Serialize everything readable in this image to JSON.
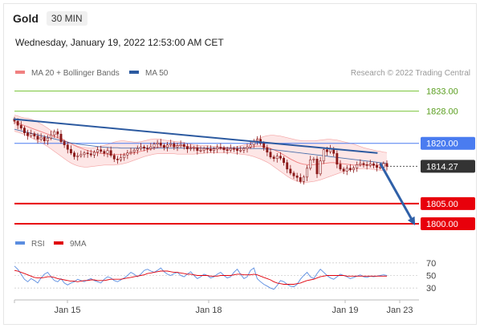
{
  "header": {
    "title": "Gold",
    "timeframe": "30 MIN",
    "datetime": "Wednesday, January 19, 2022 12:53:00 AM CET"
  },
  "colors": {
    "bollinger": "#f08080",
    "bollinger_fill": "#fde6e6",
    "ma50": "#2c5aa0",
    "resistance": "#7cc63d",
    "pivot": "#4a7cf0",
    "support": "#e8000b",
    "price_tag": "#333333",
    "candle": "#8b1a1a",
    "rsi": "#5b8de0",
    "rsi_ma": "#e0000b",
    "arrow": "#2f60a8"
  },
  "chart_data": [
    {
      "type": "line",
      "name": "price",
      "legend": [
        {
          "name": "MA 20 + Bollinger Bands",
          "color": "#f08080"
        },
        {
          "name": "MA 50",
          "color": "#2c5aa0"
        }
      ],
      "credit": "Research © 2022 Trading Central",
      "x_tick_labels": [
        "Jan 15",
        "Jan 18",
        "Jan 19",
        "Jan 23"
      ],
      "levels": [
        {
          "label": "1833.00",
          "value": 1833.0,
          "role": "resistance"
        },
        {
          "label": "1828.00",
          "value": 1828.0,
          "role": "resistance"
        },
        {
          "label": "1820.00",
          "value": 1820.0,
          "role": "pivot"
        },
        {
          "label": "1814.27",
          "value": 1814.27,
          "role": "last_price"
        },
        {
          "label": "1805.00",
          "value": 1805.0,
          "role": "support"
        },
        {
          "label": "1800.00",
          "value": 1800.0,
          "role": "support"
        }
      ],
      "ylim": [
        1799,
        1834.5
      ],
      "close": [
        1825.5,
        1824.5,
        1823.8,
        1822.6,
        1821.9,
        1822.4,
        1821.8,
        1821.0,
        1821.5,
        1820.6,
        1821.3,
        1822.1,
        1822.9,
        1822.3,
        1820.4,
        1819.6,
        1818.5,
        1817.6,
        1816.7,
        1816.9,
        1817.2,
        1817.6,
        1817.4,
        1817.1,
        1817.8,
        1818.4,
        1818.0,
        1817.5,
        1818.2,
        1817.0,
        1816.1,
        1815.9,
        1816.4,
        1817.1,
        1817.6,
        1817.9,
        1818.3,
        1818.7,
        1819.1,
        1818.8,
        1818.7,
        1819.1,
        1819.8,
        1820.1,
        1819.5,
        1819.0,
        1819.6,
        1819.9,
        1819.1,
        1819.4,
        1819.7,
        1819.2,
        1818.6,
        1818.8,
        1818.9,
        1818.2,
        1818.3,
        1818.7,
        1818.5,
        1818.2,
        1818.6,
        1819.0,
        1818.9,
        1818.4,
        1818.3,
        1818.7,
        1818.6,
        1818.2,
        1818.3,
        1818.7,
        1819.1,
        1819.6,
        1820.6,
        1821.0,
        1820.0,
        1818.9,
        1817.8,
        1816.6,
        1816.2,
        1816.8,
        1816.3,
        1815.2,
        1813.6,
        1812.6,
        1811.9,
        1811.5,
        1810.5,
        1811.6,
        1813.8,
        1815.9,
        1816.1,
        1812.4,
        1815.6,
        1818.4,
        1817.9,
        1818.6,
        1817.5,
        1814.8,
        1813.6,
        1813.1,
        1813.8,
        1813.4,
        1813.9,
        1814.7,
        1815.0,
        1814.7,
        1814.5,
        1814.9,
        1814.5,
        1814.0,
        1814.1,
        1815.0,
        1814.27
      ],
      "ma20_upper": [
        1827.0,
        1826.8,
        1826.5,
        1826.3,
        1826.2,
        1826.0,
        1825.7,
        1825.3,
        1824.8,
        1824.3,
        1823.8,
        1823.2,
        1822.6,
        1822.0,
        1821.4,
        1820.8,
        1820.3,
        1819.9,
        1819.6,
        1819.3,
        1819.1,
        1819.0,
        1818.9,
        1818.8,
        1818.9,
        1819.1,
        1819.3,
        1819.5,
        1819.7,
        1820.0,
        1820.3,
        1820.5,
        1820.6,
        1820.6,
        1820.5,
        1820.4,
        1820.3,
        1820.3,
        1820.4,
        1820.6,
        1820.8,
        1821.0,
        1821.1,
        1821.1,
        1821.0,
        1820.8,
        1820.7,
        1820.6,
        1820.5,
        1820.4,
        1820.3,
        1820.2,
        1820.0,
        1819.8,
        1819.6,
        1819.5,
        1819.4,
        1819.4,
        1819.4,
        1819.3,
        1819.2,
        1819.2,
        1819.1,
        1819.0,
        1819.0,
        1819.0,
        1819.1,
        1819.2,
        1819.4,
        1819.6,
        1819.8,
        1820.1,
        1820.5,
        1821.0,
        1821.4,
        1821.7,
        1821.9,
        1822.0,
        1822.0,
        1821.9,
        1821.8,
        1821.6,
        1821.4,
        1821.2,
        1821.0,
        1820.8,
        1820.7,
        1820.6,
        1820.6,
        1820.6,
        1820.6,
        1820.7,
        1820.8,
        1820.9,
        1821.0,
        1821.0,
        1820.9,
        1820.8,
        1820.6,
        1820.4,
        1820.2,
        1820.0,
        1819.8,
        1819.5,
        1819.2,
        1818.9,
        1818.7,
        1818.5,
        1818.3,
        1818.1,
        1818.0,
        1817.8,
        1817.7
      ],
      "ma20_mid": [
        1825.2,
        1825.0,
        1824.7,
        1824.4,
        1824.1,
        1823.8,
        1823.5,
        1823.2,
        1822.9,
        1822.6,
        1822.3,
        1822.0,
        1821.7,
        1821.4,
        1821.1,
        1820.7,
        1820.3,
        1819.9,
        1819.5,
        1819.1,
        1818.8,
        1818.5,
        1818.2,
        1818.0,
        1817.8,
        1817.6,
        1817.5,
        1817.4,
        1817.3,
        1817.2,
        1817.2,
        1817.2,
        1817.2,
        1817.3,
        1817.4,
        1817.5,
        1817.6,
        1817.8,
        1818.0,
        1818.2,
        1818.4,
        1818.6,
        1818.8,
        1819.0,
        1819.1,
        1819.2,
        1819.3,
        1819.3,
        1819.4,
        1819.4,
        1819.4,
        1819.3,
        1819.2,
        1819.1,
        1819.0,
        1818.9,
        1818.8,
        1818.7,
        1818.7,
        1818.6,
        1818.6,
        1818.6,
        1818.6,
        1818.6,
        1818.6,
        1818.6,
        1818.6,
        1818.6,
        1818.7,
        1818.8,
        1818.9,
        1819.0,
        1819.2,
        1819.3,
        1819.3,
        1819.2,
        1819.0,
        1818.7,
        1818.4,
        1818.0,
        1817.6,
        1817.1,
        1816.6,
        1816.1,
        1815.7,
        1815.3,
        1815.0,
        1814.8,
        1814.7,
        1814.7,
        1814.7,
        1814.8,
        1814.9,
        1815.0,
        1815.1,
        1815.2,
        1815.2,
        1815.1,
        1815.0,
        1814.9,
        1814.8,
        1814.7,
        1814.6,
        1814.6,
        1814.6,
        1814.6,
        1814.6,
        1814.6,
        1814.6,
        1814.6,
        1814.6,
        1814.6,
        1814.6
      ],
      "ma20_lower": [
        1823.0,
        1822.8,
        1822.5,
        1822.2,
        1821.8,
        1821.4,
        1821.0,
        1820.6,
        1820.2,
        1819.7,
        1819.2,
        1818.6,
        1818.0,
        1817.4,
        1816.8,
        1816.2,
        1815.6,
        1815.1,
        1814.7,
        1814.4,
        1814.2,
        1814.1,
        1814.1,
        1814.2,
        1814.3,
        1814.4,
        1814.5,
        1814.6,
        1814.6,
        1814.6,
        1814.6,
        1814.7,
        1814.8,
        1815.0,
        1815.2,
        1815.5,
        1815.8,
        1816.1,
        1816.4,
        1816.7,
        1816.9,
        1817.1,
        1817.3,
        1817.4,
        1817.4,
        1817.4,
        1817.4,
        1817.4,
        1817.4,
        1817.3,
        1817.3,
        1817.3,
        1817.3,
        1817.3,
        1817.3,
        1817.4,
        1817.4,
        1817.5,
        1817.6,
        1817.6,
        1817.6,
        1817.6,
        1817.6,
        1817.6,
        1817.6,
        1817.6,
        1817.5,
        1817.4,
        1817.3,
        1817.2,
        1817.1,
        1816.9,
        1816.7,
        1816.4,
        1816.1,
        1815.7,
        1815.3,
        1814.8,
        1814.2,
        1813.6,
        1813.0,
        1812.4,
        1811.8,
        1811.3,
        1810.9,
        1810.6,
        1810.4,
        1810.3,
        1810.3,
        1810.4,
        1810.5,
        1810.7,
        1810.9,
        1811.2,
        1811.5,
        1811.8,
        1812.1,
        1812.4,
        1812.7,
        1813.0,
        1813.2,
        1813.4,
        1813.5,
        1813.6,
        1813.7,
        1813.7,
        1813.7,
        1813.6,
        1813.5,
        1813.4,
        1813.3,
        1813.2,
        1813.1
      ],
      "ma50": [
        1823.5,
        1823.3,
        1823.1,
        1822.9,
        1822.7,
        1822.5,
        1822.3,
        1822.1,
        1821.9,
        1821.7,
        1821.5,
        1821.3,
        1821.1,
        1820.9,
        1820.7,
        1820.5,
        1820.3,
        1820.1,
        1820.0,
        1819.8,
        1819.7,
        1819.6,
        1819.5,
        1819.4,
        1819.3,
        1819.2,
        1819.1,
        1819.0,
        1819.0,
        1818.9,
        1818.9,
        1818.9,
        1818.8,
        1818.8,
        1818.8,
        1818.8,
        1818.8,
        1818.8,
        1818.8,
        1818.8,
        1818.8,
        1818.8,
        1818.8,
        1818.8,
        1818.8,
        1818.8,
        1818.8,
        1818.8,
        1818.8,
        1818.8,
        1818.8,
        1818.8,
        1818.8,
        1818.8,
        1818.8,
        1818.8,
        1818.8,
        1818.8,
        1818.8,
        1818.8,
        1818.8,
        1818.8,
        1818.8,
        1818.8,
        1818.8,
        1818.8,
        1818.8,
        1818.8,
        1818.8,
        1818.8,
        1818.8,
        1818.7,
        1818.7,
        1818.7,
        1818.7,
        1818.6,
        1818.6,
        1818.5,
        1818.4,
        1818.3,
        1818.2,
        1818.1,
        1818.0,
        1817.9,
        1817.8,
        1817.7,
        1817.6,
        1817.5,
        1817.4,
        1817.3,
        1817.2,
        1817.1,
        1817.0,
        1816.9,
        1816.8,
        1816.7,
        1816.6,
        1816.5,
        1816.4,
        1816.3,
        1816.2,
        1816.1,
        1816.0,
        1815.9,
        1815.8,
        1815.7,
        1815.6,
        1815.5,
        1815.4,
        1815.3,
        1815.2,
        1815.1,
        1815.0
      ],
      "trendline": {
        "from": [
          0,
          1826.0
        ],
        "to": [
          109,
          1817.6
        ]
      },
      "projection": {
        "from": [
          110,
          1815.0
        ],
        "to": [
          120,
          1800.3
        ]
      }
    },
    {
      "type": "line",
      "name": "rsi",
      "legend": [
        {
          "name": "RSI",
          "color": "#5b8de0"
        },
        {
          "name": "9MA",
          "color": "#e0000b"
        }
      ],
      "y_tick_labels": [
        "70",
        "50",
        "30"
      ],
      "ylim": [
        20,
        80
      ],
      "rsi": [
        65,
        60,
        52,
        44,
        40,
        45,
        42,
        38,
        46,
        52,
        55,
        48,
        42,
        40,
        45,
        38,
        35,
        38,
        40,
        44,
        42,
        40,
        43,
        45,
        42,
        40,
        38,
        44,
        48,
        46,
        42,
        40,
        43,
        46,
        50,
        55,
        52,
        48,
        52,
        58,
        60,
        57,
        55,
        58,
        62,
        56,
        52,
        50,
        53,
        55,
        50,
        48,
        52,
        56,
        50,
        45,
        48,
        52,
        50,
        46,
        48,
        52,
        55,
        50,
        46,
        48,
        55,
        60,
        52,
        45,
        48,
        58,
        62,
        45,
        40,
        36,
        33,
        30,
        28,
        34,
        42,
        40,
        36,
        33,
        32,
        36,
        44,
        50,
        55,
        48,
        45,
        53,
        60,
        55,
        50,
        46,
        44,
        48,
        52,
        50,
        48,
        45,
        47,
        49,
        51,
        48,
        47,
        49,
        48,
        49,
        50,
        51,
        50
      ],
      "rsi_9ma": [
        58,
        57,
        55,
        53,
        51,
        49,
        47,
        46,
        46,
        47,
        48,
        48,
        47,
        45,
        44,
        43,
        42,
        41,
        41,
        40,
        41,
        42,
        42,
        43,
        43,
        42,
        42,
        42,
        43,
        44,
        44,
        44,
        44,
        45,
        46,
        47,
        48,
        49,
        50,
        51,
        53,
        54,
        55,
        56,
        57,
        57,
        57,
        56,
        55,
        55,
        54,
        53,
        52,
        52,
        51,
        50,
        50,
        50,
        50,
        49,
        49,
        49,
        50,
        50,
        50,
        50,
        51,
        52,
        52,
        51,
        51,
        51,
        52,
        51,
        49,
        47,
        45,
        43,
        40,
        38,
        37,
        36,
        36,
        36,
        36,
        37,
        38,
        40,
        42,
        43,
        44,
        46,
        48,
        49,
        50,
        50,
        50,
        50,
        50,
        50,
        49,
        49,
        49,
        49,
        49,
        49,
        49,
        49,
        49,
        49,
        49,
        49,
        49
      ]
    }
  ]
}
